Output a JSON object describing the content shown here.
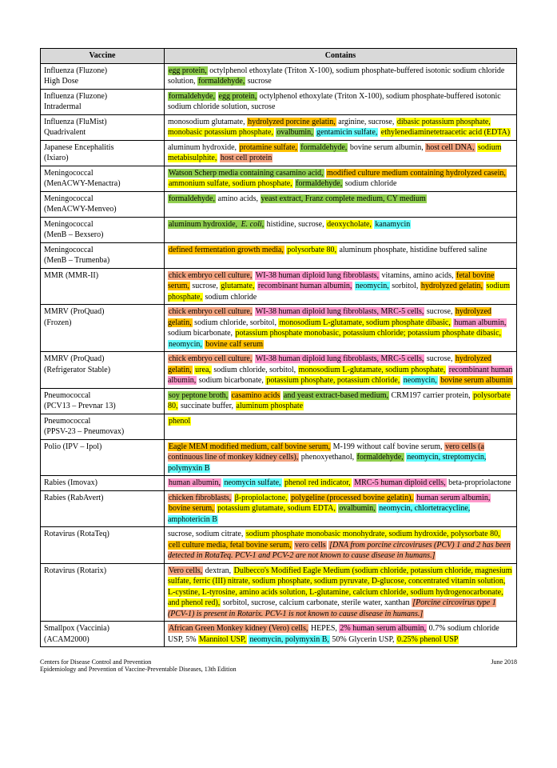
{
  "colors": {
    "green": "#92d050",
    "yellow": "#ffff00",
    "orange": "#ffc000",
    "pink": "#ff99cc",
    "cyan": "#66ffff",
    "salmon": "#f4a582",
    "italic_note": "#e89a6a"
  },
  "headers": {
    "vaccine": "Vaccine",
    "contains": "Contains"
  },
  "footer": {
    "left_line1": "Centers for Disease Control and Prevention",
    "left_line2": "Epidemiology and Prevention of Vaccine-Preventable Diseases, 13th Edition",
    "right": "June 2018"
  },
  "rows": [
    {
      "name": "Influenza (Fluzone)\nHigh Dose",
      "segments": [
        {
          "t": "egg protein,",
          "c": "green"
        },
        {
          "t": " octylphenol ethoxylate (Triton X-100), sodium phosphate-buffered isotonic sodium chloride solution, "
        },
        {
          "t": "formaldehyde,",
          "c": "green"
        },
        {
          "t": " sucrose"
        }
      ]
    },
    {
      "name": "Influenza (Fluzone)\nIntradermal",
      "segments": [
        {
          "t": "formaldehyde,",
          "c": "green"
        },
        {
          "t": " "
        },
        {
          "t": "egg protein,",
          "c": "green"
        },
        {
          "t": " octylphenol ethoxylate (Triton X-100), sodium phosphate-buffered isotonic sodium chloride solution, sucrose"
        }
      ]
    },
    {
      "name": "Influenza (FluMist)\nQuadrivalent",
      "segments": [
        {
          "t": "monosodium glutamate, "
        },
        {
          "t": "hydrolyzed porcine gelatin,",
          "c": "orange"
        },
        {
          "t": " arginine, sucrose, "
        },
        {
          "t": "dibasic potassium phosphate, monobasic potassium phosphate,",
          "c": "yellow"
        },
        {
          "t": " "
        },
        {
          "t": "ovalbumin,",
          "c": "green"
        },
        {
          "t": " "
        },
        {
          "t": "gentamicin sulfate,",
          "c": "cyan"
        },
        {
          "t": " "
        },
        {
          "t": "ethylenediaminetetraacetic acid (EDTA)",
          "c": "yellow"
        }
      ]
    },
    {
      "name": "Japanese Encephalitis\n(Ixiaro)",
      "segments": [
        {
          "t": "aluminum hydroxide, "
        },
        {
          "t": "protamine sulfate,",
          "c": "orange"
        },
        {
          "t": " "
        },
        {
          "t": "formaldehyde,",
          "c": "green"
        },
        {
          "t": "  bovine serum albumin, "
        },
        {
          "t": "host cell DNA,",
          "c": "salmon"
        },
        {
          "t": " "
        },
        {
          "t": "sodium metabisulphite,",
          "c": "yellow"
        },
        {
          "t": " "
        },
        {
          "t": "host cell protein",
          "c": "salmon"
        }
      ]
    },
    {
      "name": "Meningococcal\n(MenACWY-Menactra)",
      "segments": [
        {
          "t": "Watson Scherp media containing casamino acid,",
          "c": "green"
        },
        {
          "t": " "
        },
        {
          "t": "modified culture medium containing hydrolyzed casein,",
          "c": "orange"
        },
        {
          "t": " "
        },
        {
          "t": "ammonium sulfate, sodium phosphate,",
          "c": "yellow"
        },
        {
          "t": " "
        },
        {
          "t": "formaldehyde,",
          "c": "green"
        },
        {
          "t": " sodium chloride"
        }
      ]
    },
    {
      "name": "Meningococcal\n(MenACWY-Menveo)",
      "segments": [
        {
          "t": "formaldehyde,",
          "c": "green"
        },
        {
          "t": " amino acids, "
        },
        {
          "t": "yeast extract, Franz complete medium, CY medium",
          "c": "green"
        }
      ]
    },
    {
      "name": "Meningococcal\n(MenB – Bexsero)",
      "segments": [
        {
          "t": "aluminum hydroxide, ",
          "c": "green"
        },
        {
          "t": "E. coli,",
          "c": "green",
          "i": true
        },
        {
          "t": " histidine, sucrose, "
        },
        {
          "t": "deoxycholate,",
          "c": "yellow"
        },
        {
          "t": " "
        },
        {
          "t": "kanamycin",
          "c": "cyan"
        }
      ]
    },
    {
      "name": "Meningococcal\n(MenB – Trumenba)",
      "segments": [
        {
          "t": "defined fermentation growth media,",
          "c": "orange"
        },
        {
          "t": " "
        },
        {
          "t": "polysorbate 80,",
          "c": "yellow"
        },
        {
          "t": " aluminum phosphate, histidine buffered saline"
        }
      ]
    },
    {
      "name": "MMR (MMR-II)",
      "segments": [
        {
          "t": "chick embryo cell culture,",
          "c": "salmon"
        },
        {
          "t": " "
        },
        {
          "t": "WI-38 human diploid lung fibroblasts,",
          "c": "pink"
        },
        {
          "t": " vitamins, amino acids, "
        },
        {
          "t": "fetal bovine serum,",
          "c": "orange"
        },
        {
          "t": " sucrose, "
        },
        {
          "t": "glutamate,",
          "c": "yellow"
        },
        {
          "t": " "
        },
        {
          "t": "recombinant human albumin,",
          "c": "pink"
        },
        {
          "t": " "
        },
        {
          "t": "neomycin,",
          "c": "cyan"
        },
        {
          "t": " sorbitol, "
        },
        {
          "t": "hydrolyzed gelatin,",
          "c": "orange"
        },
        {
          "t": " "
        },
        {
          "t": "sodium phosphate,",
          "c": "yellow"
        },
        {
          "t": " sodium chloride"
        }
      ]
    },
    {
      "name": "MMRV (ProQuad)\n(Frozen)",
      "segments": [
        {
          "t": "chick embryo cell culture,",
          "c": "salmon"
        },
        {
          "t": " "
        },
        {
          "t": "WI-38 human diploid lung fibroblasts, MRC-5 cells,",
          "c": "pink"
        },
        {
          "t": " sucrose, "
        },
        {
          "t": "hydrolyzed gelatin,",
          "c": "orange"
        },
        {
          "t": " sodium chloride, sorbitol, "
        },
        {
          "t": "monosodium L-glutamate, sodium phosphate dibasic,",
          "c": "yellow"
        },
        {
          "t": " "
        },
        {
          "t": "human albumin,",
          "c": "pink"
        },
        {
          "t": " sodium bicarbonate, "
        },
        {
          "t": "potassium phosphate monobasic, potassium chloride; potassium phosphate dibasic,",
          "c": "yellow"
        },
        {
          "t": " "
        },
        {
          "t": "neomycin,",
          "c": "cyan"
        },
        {
          "t": " "
        },
        {
          "t": "bovine calf serum",
          "c": "orange"
        }
      ]
    },
    {
      "name": "MMRV (ProQuad)\n(Refrigerator Stable)",
      "segments": [
        {
          "t": "chick embryo cell culture,",
          "c": "salmon"
        },
        {
          "t": " "
        },
        {
          "t": "WI-38 human diploid lung fibroblasts, MRC-5 cells,",
          "c": "pink"
        },
        {
          "t": " sucrose, "
        },
        {
          "t": "hydrolyzed gelatin,",
          "c": "orange"
        },
        {
          "t": " "
        },
        {
          "t": "urea,",
          "c": "yellow"
        },
        {
          "t": " sodium chloride, sorbitol, "
        },
        {
          "t": "monosodium L-glutamate, sodium phosphate,",
          "c": "yellow"
        },
        {
          "t": " "
        },
        {
          "t": "recombinant human albumin,",
          "c": "pink"
        },
        {
          "t": " sodium bicarbonate, "
        },
        {
          "t": "potassium phosphate, potassium chloride,",
          "c": "yellow"
        },
        {
          "t": " "
        },
        {
          "t": "neomycin,",
          "c": "cyan"
        },
        {
          "t": " "
        },
        {
          "t": "bovine serum albumin",
          "c": "orange"
        }
      ]
    },
    {
      "name": "Pneumococcal\n(PCV13 – Prevnar 13)",
      "segments": [
        {
          "t": "soy peptone broth,",
          "c": "green"
        },
        {
          "t": " "
        },
        {
          "t": "casamino acids",
          "c": "orange"
        },
        {
          "t": " "
        },
        {
          "t": "and yeast extract-based medium,",
          "c": "green"
        },
        {
          "t": " CRM197 carrier protein, "
        },
        {
          "t": "polysorbate 80,",
          "c": "yellow"
        },
        {
          "t": " succinate buffer, "
        },
        {
          "t": "aluminum phosphate",
          "c": "yellow"
        }
      ]
    },
    {
      "name": "Pneumococcal\n(PPSV-23 – Pneumovax)",
      "segments": [
        {
          "t": "phenol",
          "c": "yellow"
        }
      ]
    },
    {
      "name": "Polio (IPV – Ipol)",
      "segments": [
        {
          "t": "Eagle MEM modified medium, calf bovine serum,",
          "c": "orange"
        },
        {
          "t": " M-199 without calf bovine serum, "
        },
        {
          "t": "vero cells (a continuous line of monkey kidney cells),",
          "c": "salmon"
        },
        {
          "t": " phenoxyethanol, "
        },
        {
          "t": "formaldehyde,",
          "c": "green"
        },
        {
          "t": " "
        },
        {
          "t": "neomycin, streptomycin, polymyxin B",
          "c": "cyan"
        }
      ]
    },
    {
      "name": "Rabies (Imovax)",
      "segments": [
        {
          "t": "human albumin,",
          "c": "pink"
        },
        {
          "t": " "
        },
        {
          "t": "neomycin sulfate,",
          "c": "cyan"
        },
        {
          "t": " "
        },
        {
          "t": "phenol red indicator,",
          "c": "yellow"
        },
        {
          "t": " "
        },
        {
          "t": "MRC-5 human diploid cells,",
          "c": "pink"
        },
        {
          "t": " beta-propriolactone"
        }
      ]
    },
    {
      "name": "Rabies (RabAvert)",
      "segments": [
        {
          "t": "chicken fibroblasts,",
          "c": "salmon"
        },
        {
          "t": " "
        },
        {
          "t": "β-propiolactone,",
          "c": "yellow"
        },
        {
          "t": " "
        },
        {
          "t": "polygeline (processed bovine gelatin),",
          "c": "orange"
        },
        {
          "t": " "
        },
        {
          "t": "human serum albumin,",
          "c": "pink"
        },
        {
          "t": " "
        },
        {
          "t": "bovine serum,",
          "c": "orange"
        },
        {
          "t": " "
        },
        {
          "t": "potassium glutamate, sodium EDTA,",
          "c": "yellow"
        },
        {
          "t": " "
        },
        {
          "t": "ovalbumin,",
          "c": "green"
        },
        {
          "t": " "
        },
        {
          "t": "neomycin, chlortetracycline, amphotericin B",
          "c": "cyan"
        }
      ]
    },
    {
      "name": "Rotavirus (RotaTeq)",
      "segments": [
        {
          "t": "sucrose, sodium citrate, "
        },
        {
          "t": "sodium phosphate monobasic monohydrate, sodium hydroxide, polysorbate 80,",
          "c": "yellow"
        },
        {
          "t": " "
        },
        {
          "t": "cell culture media, fetal bovine serum,",
          "c": "orange"
        },
        {
          "t": " "
        },
        {
          "t": "vero cells",
          "c": "salmon"
        },
        {
          "t": " "
        },
        {
          "t": "[DNA from porcine circoviruses (PCV) 1 and 2 has been detected in RotaTeq. PCV-1 and PCV-2 are not known to cause disease in humans.]",
          "c": "salmon",
          "i": true
        }
      ]
    },
    {
      "name": "Rotavirus (Rotarix)",
      "segments": [
        {
          "t": "Vero cells,",
          "c": "salmon"
        },
        {
          "t": " dextran, "
        },
        {
          "t": "Dulbecco's Modified Eagle Medium (sodium chloride, potassium chloride, magnesium sulfate, ferric (III) nitrate, sodium phosphate, sodium pyruvate, D-glucose, concentrated vitamin solution, L-cystine, L-tyrosine, amino acids solution, L-glutamine, calcium chloride, sodium hydrogenocarbonate, and phenol red),",
          "c": "yellow"
        },
        {
          "t": " sorbitol, sucrose, calcium carbonate, sterile water, xanthan "
        },
        {
          "t": "[Porcine circovirus type 1 (PCV-1) is present in Rotarix. PCV-1 is not known to cause disease in humans.]",
          "c": "salmon",
          "i": true
        }
      ]
    },
    {
      "name": "Smallpox (Vaccinia)\n(ACAM2000)",
      "segments": [
        {
          "t": "African Green Monkey kidney (Vero) cells,",
          "c": "salmon"
        },
        {
          "t": " HEPES, "
        },
        {
          "t": "2% human serum albumin,",
          "c": "pink"
        },
        {
          "t": " 0.7% sodium chloride USP, 5% "
        },
        {
          "t": "Mannitol USP,",
          "c": "yellow"
        },
        {
          "t": " "
        },
        {
          "t": "neomycin, polymyxin B,",
          "c": "cyan"
        },
        {
          "t": " 50% Glycerin USP, "
        },
        {
          "t": "0.25% phenol USP",
          "c": "yellow"
        }
      ]
    }
  ]
}
